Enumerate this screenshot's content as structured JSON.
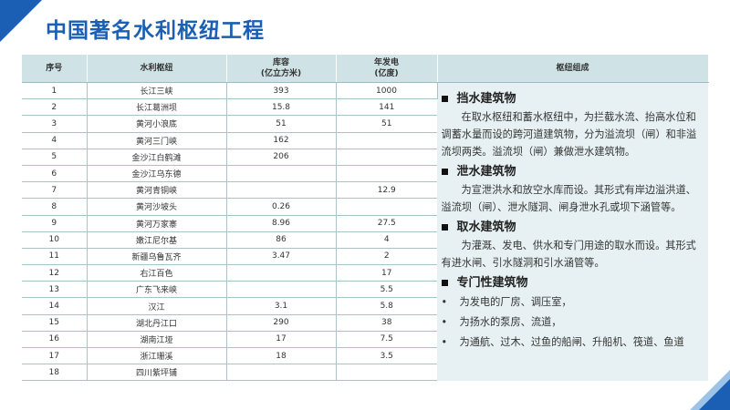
{
  "title": "中国著名水利枢纽工程",
  "table": {
    "headers": {
      "no": "序号",
      "name": "水利枢纽",
      "capacity": "库容\n(亿立方米)",
      "power": "年发电\n(亿度)",
      "composition": "枢纽组成"
    },
    "rows": [
      {
        "no": "1",
        "name": "长江三峡",
        "capacity": "393",
        "power": "1000"
      },
      {
        "no": "2",
        "name": "长江葛洲坝",
        "capacity": "15.8",
        "power": "141"
      },
      {
        "no": "3",
        "name": "黄河小浪底",
        "capacity": "51",
        "power": "51"
      },
      {
        "no": "4",
        "name": "黄河三门峡",
        "capacity": "162",
        "power": ""
      },
      {
        "no": "5",
        "name": "金沙江白鹤滩",
        "capacity": "206",
        "power": ""
      },
      {
        "no": "6",
        "name": "金沙江乌东德",
        "capacity": "",
        "power": ""
      },
      {
        "no": "7",
        "name": "黄河青铜峡",
        "capacity": "",
        "power": "12.9"
      },
      {
        "no": "8",
        "name": "黄河沙坡头",
        "capacity": "0.26",
        "power": ""
      },
      {
        "no": "9",
        "name": "黄河万家寨",
        "capacity": "8.96",
        "power": "27.5"
      },
      {
        "no": "10",
        "name": "嫩江尼尔基",
        "capacity": "86",
        "power": "4"
      },
      {
        "no": "11",
        "name": "新疆乌鲁瓦齐",
        "capacity": "3.47",
        "power": "2"
      },
      {
        "no": "12",
        "name": "右江百色",
        "capacity": "",
        "power": "17"
      },
      {
        "no": "13",
        "name": "广东飞来峡",
        "capacity": "",
        "power": "5.5"
      },
      {
        "no": "14",
        "name": "汉江",
        "capacity": "3.1",
        "power": "5.8"
      },
      {
        "no": "15",
        "name": "湖北丹江口",
        "capacity": "290",
        "power": "38"
      },
      {
        "no": "16",
        "name": "湖南江垭",
        "capacity": "17",
        "power": "7.5"
      },
      {
        "no": "17",
        "name": "浙江珊溪",
        "capacity": "18",
        "power": "3.5"
      },
      {
        "no": "18",
        "name": "四川紫坪铺",
        "capacity": "",
        "power": ""
      }
    ]
  },
  "panel": {
    "sections": [
      {
        "title": "挡水建筑物",
        "body": "在取水枢纽和蓄水枢纽中，为拦截水流、抬高水位和调蓄水量而设的跨河道建筑物，分为溢流坝（闸）和非溢流坝两类。溢流坝（闸）兼做泄水建筑物。"
      },
      {
        "title": "泄水建筑物",
        "body": "为宣泄洪水和放空水库而设。其形式有岸边溢洪道、溢流坝（闸）、泄水隧洞、闸身泄水孔或坝下涵管等。"
      },
      {
        "title": "取水建筑物",
        "body": "为灌溉、发电、供水和专门用途的取水而设。其形式有进水闸、引水隧洞和引水涵管等。"
      },
      {
        "title": "专门性建筑物",
        "bullet_symbol": "•",
        "items": [
          "为发电的厂房、调压室，",
          "为扬水的泵房、流道，",
          "为通航、过木、过鱼的船闸、升船机、筏道、鱼道"
        ]
      }
    ]
  }
}
